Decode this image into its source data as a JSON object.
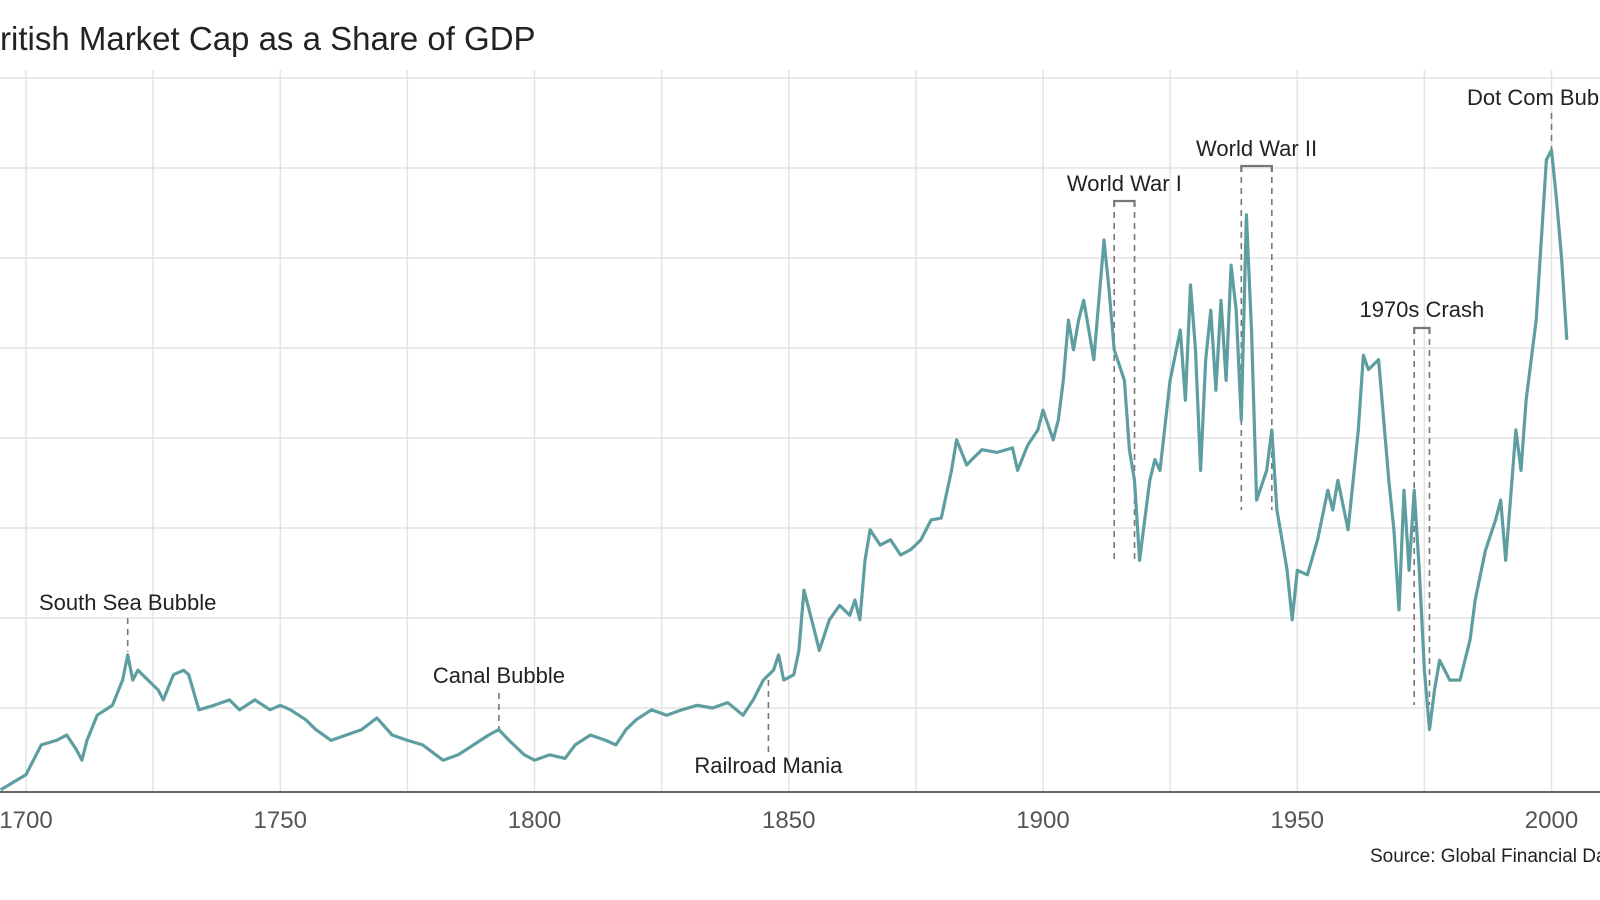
{
  "chart_data": {
    "type": "line",
    "title": "British Market Cap as a Share of GDP",
    "source": "Source: Global Financial Data",
    "xlabel": "",
    "ylabel": "",
    "xlim": [
      1695,
      2003
    ],
    "x_ticks": [
      1700,
      1750,
      1800,
      1850,
      1900,
      1950,
      2000
    ],
    "y_tick_labels_visible": false,
    "grid": true,
    "line_color": "#5f9ea0",
    "series": [
      {
        "x": [
          1695,
          1700,
          1703,
          1706,
          1708,
          1710,
          1711,
          1712,
          1714,
          1717,
          1719,
          1720,
          1721,
          1722,
          1724,
          1726,
          1727,
          1729,
          1731,
          1732,
          1734,
          1737,
          1740,
          1742,
          1745,
          1748,
          1750,
          1752,
          1755,
          1757,
          1760,
          1763,
          1766,
          1769,
          1772,
          1775,
          1778,
          1782,
          1785,
          1788,
          1791,
          1793,
          1795,
          1798,
          1800,
          1803,
          1806,
          1808,
          1811,
          1814,
          1816,
          1818,
          1820,
          1823,
          1826,
          1829,
          1832,
          1835,
          1838,
          1841,
          1843,
          1845,
          1847,
          1848,
          1849,
          1851,
          1852,
          1853,
          1855,
          1856,
          1858,
          1860,
          1862,
          1863,
          1864,
          1865,
          1866,
          1868,
          1870,
          1872,
          1874,
          1876,
          1878,
          1880,
          1882,
          1883,
          1885,
          1886,
          1888,
          1891,
          1894,
          1895,
          1897,
          1899,
          1900,
          1902,
          1903,
          1904,
          1905,
          1906,
          1907,
          1908,
          1909,
          1910,
          1911,
          1912,
          1913,
          1914,
          1916,
          1917,
          1918,
          1919,
          1920,
          1921,
          1922,
          1923,
          1925,
          1927,
          1928,
          1929,
          1930,
          1931,
          1932,
          1933,
          1934,
          1935,
          1936,
          1937,
          1938,
          1939,
          1940,
          1941,
          1942,
          1944,
          1945,
          1946,
          1947,
          1948,
          1949,
          1950,
          1952,
          1954,
          1956,
          1957,
          1958,
          1960,
          1962,
          1963,
          1964,
          1966,
          1967,
          1968,
          1969,
          1970,
          1971,
          1972,
          1973,
          1974,
          1975,
          1976,
          1977,
          1978,
          1980,
          1982,
          1984,
          1985,
          1987,
          1989,
          1990,
          1991,
          1993,
          1994,
          1995,
          1997,
          1998,
          1999,
          2000,
          2001,
          2002,
          2003
        ],
        "y": [
          0.09,
          0.26,
          0.59,
          0.64,
          0.7,
          0.53,
          0.42,
          0.64,
          0.92,
          1.03,
          1.31,
          1.59,
          1.31,
          1.42,
          1.31,
          1.2,
          1.09,
          1.37,
          1.42,
          1.37,
          0.98,
          1.03,
          1.09,
          0.98,
          1.09,
          0.98,
          1.03,
          0.98,
          0.87,
          0.76,
          0.64,
          0.7,
          0.76,
          0.89,
          0.7,
          0.64,
          0.59,
          0.42,
          0.48,
          0.59,
          0.7,
          0.76,
          0.64,
          0.48,
          0.42,
          0.48,
          0.44,
          0.59,
          0.7,
          0.64,
          0.59,
          0.76,
          0.87,
          0.98,
          0.92,
          0.98,
          1.03,
          1.0,
          1.06,
          0.92,
          1.09,
          1.31,
          1.42,
          1.59,
          1.31,
          1.37,
          1.64,
          2.31,
          1.87,
          1.64,
          1.98,
          2.14,
          2.03,
          2.2,
          1.98,
          2.64,
          2.98,
          2.81,
          2.87,
          2.7,
          2.76,
          2.87,
          3.09,
          3.11,
          3.64,
          3.98,
          3.7,
          3.76,
          3.87,
          3.84,
          3.89,
          3.64,
          3.92,
          4.09,
          4.31,
          3.98,
          4.2,
          4.64,
          5.31,
          4.98,
          5.31,
          5.53,
          5.2,
          4.87,
          5.53,
          6.2,
          5.64,
          4.98,
          4.64,
          3.87,
          3.53,
          2.64,
          3.09,
          3.53,
          3.76,
          3.64,
          4.64,
          5.2,
          4.42,
          5.7,
          4.98,
          3.64,
          4.87,
          5.42,
          4.53,
          5.53,
          4.64,
          5.92,
          5.42,
          4.2,
          6.48,
          5.2,
          3.31,
          3.64,
          4.09,
          3.2,
          2.87,
          2.53,
          1.98,
          2.53,
          2.48,
          2.87,
          3.42,
          3.2,
          3.53,
          2.98,
          4.09,
          4.92,
          4.76,
          4.87,
          4.2,
          3.53,
          2.98,
          2.09,
          3.42,
          2.53,
          3.42,
          2.53,
          1.42,
          0.76,
          1.2,
          1.53,
          1.31,
          1.31,
          1.76,
          2.2,
          2.75,
          3.09,
          3.31,
          2.64,
          4.09,
          3.64,
          4.42,
          5.31,
          6.2,
          7.09,
          7.2,
          6.64,
          5.98,
          5.09
        ]
      }
    ],
    "annotations": [
      {
        "label": "South Sea Bubble",
        "start": 1720,
        "end": 1720
      },
      {
        "label": "Canal Bubble",
        "start": 1793,
        "end": 1793
      },
      {
        "label": "Railroad Mania",
        "start": 1846,
        "end": 1846
      },
      {
        "label": "World War I",
        "start": 1914,
        "end": 1918
      },
      {
        "label": "World War II",
        "start": 1939,
        "end": 1945
      },
      {
        "label": "1970s Crash",
        "start": 1973,
        "end": 1976
      },
      {
        "label": "Dot Com Bubble",
        "start": 2000,
        "end": 2000
      }
    ]
  }
}
